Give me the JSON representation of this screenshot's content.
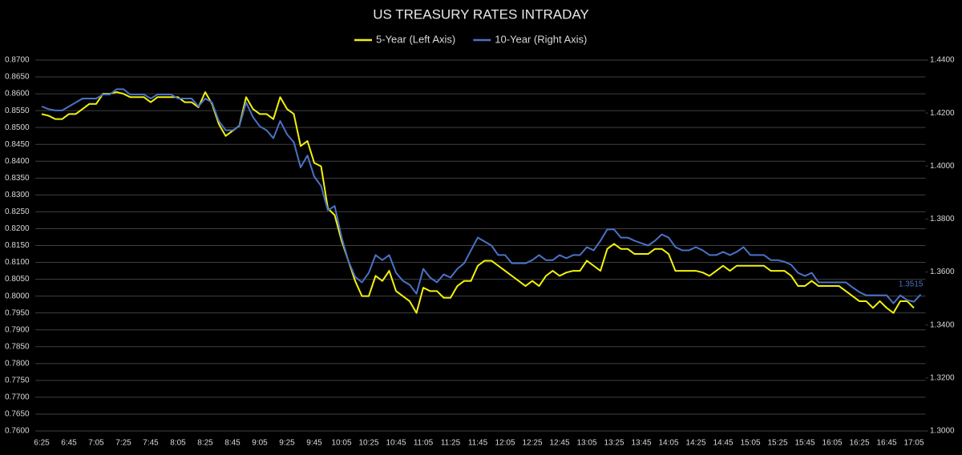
{
  "chart_data": {
    "type": "line",
    "title": "US TREASURY RATES INTRADAY",
    "categories": [
      "6:25",
      null,
      null,
      null,
      "6:45",
      null,
      null,
      null,
      "7:05",
      null,
      null,
      null,
      "7:25",
      null,
      null,
      null,
      "7:45",
      null,
      null,
      null,
      "8:05",
      null,
      null,
      null,
      "8:25",
      null,
      null,
      null,
      "8:45",
      null,
      null,
      null,
      "9:05",
      null,
      null,
      null,
      "9:25",
      null,
      null,
      null,
      "9:45",
      null,
      null,
      null,
      "10:05",
      null,
      null,
      null,
      "10:25",
      null,
      null,
      null,
      "10:45",
      null,
      null,
      null,
      "11:05",
      null,
      null,
      null,
      "11:25",
      null,
      null,
      null,
      "11:45",
      null,
      null,
      null,
      "12:05",
      null,
      null,
      null,
      "12:25",
      null,
      null,
      null,
      "12:45",
      null,
      null,
      null,
      "13:05",
      null,
      null,
      null,
      "13:25",
      null,
      null,
      null,
      "13:45",
      null,
      null,
      null,
      "14:05",
      null,
      null,
      null,
      "14:25",
      null,
      null,
      null,
      "14:45",
      null,
      null,
      null,
      "15:05",
      null,
      null,
      null,
      "15:25",
      null,
      null,
      null,
      "15:45",
      null,
      null,
      null,
      "16:05",
      null,
      null,
      null,
      "16:25",
      null,
      null,
      null,
      "16:45",
      null,
      null,
      null,
      "17:05",
      null
    ],
    "series": [
      {
        "name": "5-Year (Left Axis)",
        "color": "#f2f20c",
        "axis": "y",
        "values": [
          0.854,
          0.8535,
          0.8525,
          0.8525,
          0.854,
          0.854,
          0.8555,
          0.857,
          0.857,
          0.86,
          0.86,
          0.8605,
          0.86,
          0.859,
          0.859,
          0.859,
          0.8575,
          0.859,
          0.859,
          0.859,
          0.859,
          0.8575,
          0.8575,
          0.856,
          0.8605,
          0.857,
          0.851,
          0.8475,
          0.849,
          0.8505,
          0.859,
          0.8555,
          0.854,
          0.854,
          0.8525,
          0.859,
          0.8555,
          0.854,
          0.8445,
          0.846,
          0.8395,
          0.8385,
          0.826,
          0.824,
          0.8165,
          0.8105,
          0.8045,
          0.8,
          0.8,
          0.806,
          0.8045,
          0.8075,
          0.8015,
          0.8,
          0.7985,
          0.795,
          0.8025,
          0.8015,
          0.8015,
          0.7995,
          0.7995,
          0.803,
          0.8045,
          0.8045,
          0.809,
          0.8105,
          0.8105,
          0.809,
          0.8075,
          0.806,
          0.8045,
          0.803,
          0.8045,
          0.803,
          0.806,
          0.8075,
          0.806,
          0.807,
          0.8075,
          0.8075,
          0.8105,
          0.809,
          0.8075,
          0.814,
          0.8155,
          0.814,
          0.814,
          0.8125,
          0.8125,
          0.8125,
          0.814,
          0.814,
          0.8125,
          0.8075,
          0.8075,
          0.8075,
          0.8075,
          0.807,
          0.806,
          0.8075,
          0.809,
          0.8075,
          0.809,
          0.809,
          0.809,
          0.809,
          0.809,
          0.8075,
          0.8075,
          0.8075,
          0.806,
          0.803,
          0.803,
          0.8045,
          0.803,
          0.803,
          0.803,
          0.803,
          0.8015,
          0.8,
          0.7985,
          0.7985,
          0.7965,
          0.7985,
          0.7965,
          0.795,
          0.7985,
          0.7985,
          0.7965,
          null
        ]
      },
      {
        "name": "10-Year (Right Axis)",
        "color": "#4a72c6",
        "axis": "y2",
        "values": [
          1.4225,
          1.4215,
          1.421,
          1.421,
          1.4225,
          1.424,
          1.4255,
          1.4255,
          1.4255,
          1.427,
          1.427,
          1.429,
          1.429,
          1.427,
          1.427,
          1.427,
          1.4255,
          1.427,
          1.427,
          1.427,
          1.4255,
          1.4255,
          1.4255,
          1.4225,
          1.4255,
          1.424,
          1.417,
          1.4135,
          1.4135,
          1.415,
          1.424,
          1.4185,
          1.415,
          1.4135,
          1.4105,
          1.417,
          1.412,
          1.409,
          1.3995,
          1.404,
          1.396,
          1.3925,
          1.3833,
          1.3849,
          1.3733,
          1.3642,
          1.3582,
          1.3561,
          1.3597,
          1.3664,
          1.3645,
          1.3664,
          1.3597,
          1.3567,
          1.3552,
          1.3518,
          1.3612,
          1.3579,
          1.3561,
          1.3591,
          1.3579,
          1.3612,
          1.3633,
          1.3682,
          1.373,
          1.3715,
          1.37,
          1.3664,
          1.3664,
          1.3633,
          1.3633,
          1.3633,
          1.3645,
          1.3664,
          1.3645,
          1.3645,
          1.3664,
          1.3652,
          1.3664,
          1.3664,
          1.3694,
          1.3682,
          1.3718,
          1.3761,
          1.3761,
          1.373,
          1.373,
          1.3718,
          1.3709,
          1.37,
          1.3718,
          1.3742,
          1.373,
          1.3694,
          1.3682,
          1.3682,
          1.3694,
          1.3682,
          1.3664,
          1.3664,
          1.3676,
          1.3664,
          1.3676,
          1.3694,
          1.3664,
          1.3664,
          1.3664,
          1.3645,
          1.3645,
          1.3639,
          1.3627,
          1.3597,
          1.3585,
          1.3597,
          1.3561,
          1.3561,
          1.3561,
          1.3561,
          1.3561,
          1.3542,
          1.3524,
          1.3512,
          1.3512,
          1.3512,
          1.3512,
          1.3482,
          1.3512,
          1.3494,
          1.3488,
          1.3515
        ]
      }
    ],
    "ylim": [
      0.76,
      0.87
    ],
    "yticks": [
      {
        "value": 0.76,
        "label": "0.7600"
      },
      {
        "value": 0.765,
        "label": "0.7650"
      },
      {
        "value": 0.77,
        "label": "0.7700"
      },
      {
        "value": 0.775,
        "label": "0.7750"
      },
      {
        "value": 0.78,
        "label": "0.7800"
      },
      {
        "value": 0.785,
        "label": "0.7850"
      },
      {
        "value": 0.79,
        "label": "0.7900"
      },
      {
        "value": 0.795,
        "label": "0.7950"
      },
      {
        "value": 0.8,
        "label": "0.8000"
      },
      {
        "value": 0.805,
        "label": "0.8050"
      },
      {
        "value": 0.81,
        "label": "0.8100"
      },
      {
        "value": 0.815,
        "label": "0.8150"
      },
      {
        "value": 0.82,
        "label": "0.8200"
      },
      {
        "value": 0.825,
        "label": "0.8250"
      },
      {
        "value": 0.83,
        "label": "0.8300"
      },
      {
        "value": 0.835,
        "label": "0.8350"
      },
      {
        "value": 0.84,
        "label": "0.8400"
      },
      {
        "value": 0.845,
        "label": "0.8450"
      },
      {
        "value": 0.85,
        "label": "0.8500"
      },
      {
        "value": 0.855,
        "label": "0.8550"
      },
      {
        "value": 0.86,
        "label": "0.8600"
      },
      {
        "value": 0.865,
        "label": "0.8650"
      },
      {
        "value": 0.87,
        "label": "0.8700"
      }
    ],
    "y2lim": [
      1.3,
      1.44
    ],
    "y2ticks": [
      {
        "value": 1.3,
        "label": "1.3000"
      },
      {
        "value": 1.32,
        "label": "1.3200"
      },
      {
        "value": 1.34,
        "label": "1.3400"
      },
      {
        "value": 1.36,
        "label": "1.3600"
      },
      {
        "value": 1.38,
        "label": "1.3800"
      },
      {
        "value": 1.4,
        "label": "1.4000"
      },
      {
        "value": 1.42,
        "label": "1.4200"
      },
      {
        "value": 1.44,
        "label": "1.4400"
      }
    ],
    "grid": true,
    "legend": "top"
  }
}
